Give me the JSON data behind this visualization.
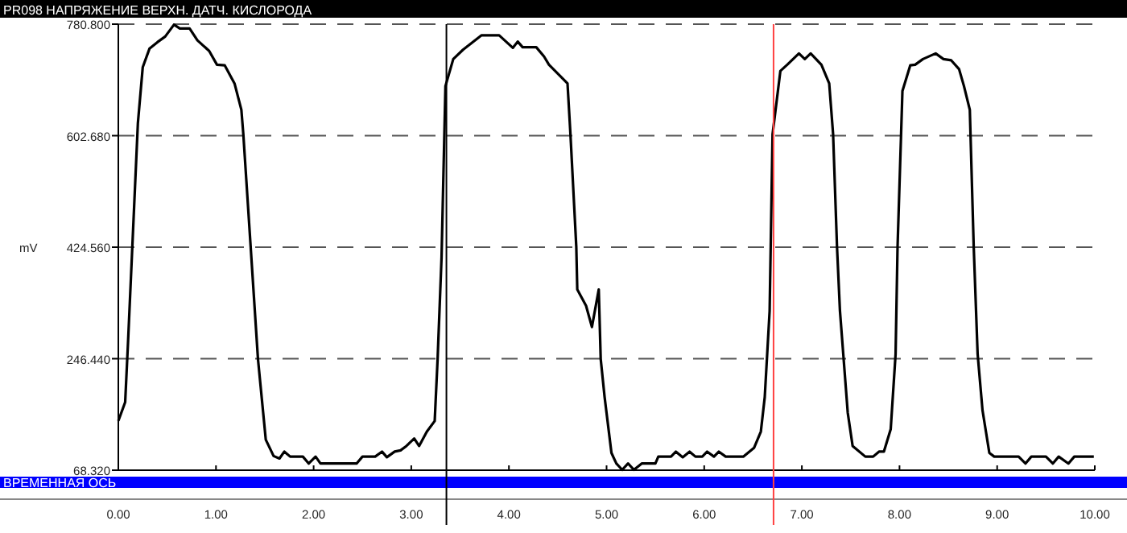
{
  "chart_data": {
    "type": "line",
    "title": "PR098  НАПРЯЖЕНИЕ ВЕРХН. ДАТЧ. КИСЛОРОДА",
    "xlabel": "ВРЕМЕННАЯ ОСЬ",
    "ylabel": "mV",
    "xlim": [
      0,
      10
    ],
    "xticks": [
      {
        "value": 0,
        "label": "0.00"
      },
      {
        "value": 1,
        "label": "1.00"
      },
      {
        "value": 2,
        "label": "2.00"
      },
      {
        "value": 3,
        "label": "3.00"
      },
      {
        "value": 4,
        "label": "4.00"
      },
      {
        "value": 5,
        "label": "5.00"
      },
      {
        "value": 6,
        "label": "6.00"
      },
      {
        "value": 7,
        "label": "7.00"
      },
      {
        "value": 8,
        "label": "8.00"
      },
      {
        "value": 9,
        "label": "9.00"
      },
      {
        "value": 10,
        "label": "10.00"
      }
    ],
    "ylim": [
      68.32,
      780.8
    ],
    "yticks": [
      {
        "value": 68.32,
        "label": "68.320"
      },
      {
        "value": 246.44,
        "label": "246.440"
      },
      {
        "value": 424.56,
        "label": "424.560"
      },
      {
        "value": 602.68,
        "label": "602.680"
      },
      {
        "value": 780.8,
        "label": "780.800"
      }
    ],
    "grid": "y",
    "marker": "none",
    "line_style": "solid",
    "ref_lines": [
      {
        "axis": "x",
        "value": 3.36,
        "color": "#000000"
      },
      {
        "axis": "x",
        "value": 6.71,
        "color": "#ff4040"
      }
    ],
    "series": [
      {
        "color": "#000000",
        "x": [
          0,
          0.07,
          0.1,
          0.2,
          0.25,
          0.32,
          0.4,
          0.48,
          0.57,
          0.63,
          0.73,
          0.81,
          0.93,
          1.01,
          1.09,
          1.19,
          1.26,
          1.28,
          1.43,
          1.51,
          1.59,
          1.65,
          1.7,
          1.76,
          1.89,
          1.95,
          2.02,
          2.07,
          2.44,
          2.5,
          2.63,
          2.7,
          2.75,
          2.83,
          2.89,
          2.95,
          3.03,
          3.08,
          3.16,
          3.24,
          3.27,
          3.31,
          3.35,
          3.43,
          3.53,
          3.72,
          3.9,
          4.04,
          4.09,
          4.14,
          4.28,
          4.36,
          4.41,
          4.6,
          4.63,
          4.69,
          4.7,
          4.79,
          4.85,
          4.92,
          4.94,
          4.98,
          5.05,
          5.1,
          5.16,
          5.22,
          5.28,
          5.36,
          5.5,
          5.53,
          5.66,
          5.71,
          5.78,
          5.85,
          5.91,
          5.98,
          6.03,
          6.1,
          6.15,
          6.22,
          6.4,
          6.51,
          6.58,
          6.62,
          6.67,
          6.7,
          6.78,
          6.85,
          6.97,
          7.03,
          7.09,
          7.2,
          7.28,
          7.32,
          7.36,
          7.39,
          7.47,
          7.52,
          7.65,
          7.73,
          7.79,
          7.84,
          7.91,
          7.96,
          7.98,
          8.03,
          8.11,
          8.16,
          8.24,
          8.37,
          8.45,
          8.53,
          8.61,
          8.66,
          8.72,
          8.76,
          8.8,
          8.85,
          8.92,
          8.97,
          9.22,
          9.29,
          9.35,
          9.5,
          9.57,
          9.63,
          9.73,
          9.79,
          9.99
        ],
        "values": [
          147,
          177,
          275,
          622,
          712,
          742,
          752,
          761,
          780,
          774,
          774,
          755,
          738,
          716,
          715,
          686,
          644,
          605,
          246,
          117,
          91,
          87,
          98,
          90,
          90,
          79,
          90,
          79,
          79,
          90,
          90,
          98,
          89,
          98,
          100,
          107,
          119,
          107,
          130,
          147,
          247,
          408,
          682,
          725,
          740,
          763,
          763,
          743,
          753,
          744,
          744,
          729,
          716,
          686,
          605,
          425,
          357,
          331,
          297,
          357,
          246,
          185,
          96,
          79,
          69,
          79,
          69,
          79,
          79,
          90,
          90,
          98,
          89,
          98,
          90,
          90,
          98,
          90,
          98,
          90,
          90,
          104,
          130,
          185,
          323,
          605,
          706,
          716,
          734,
          725,
          734,
          716,
          686,
          605,
          425,
          323,
          160,
          107,
          90,
          90,
          98,
          98,
          134,
          254,
          425,
          674,
          715,
          716,
          725,
          734,
          725,
          723,
          709,
          682,
          644,
          425,
          254,
          164,
          96,
          90,
          90,
          79,
          90,
          90,
          79,
          90,
          79,
          90,
          90
        ]
      }
    ]
  }
}
